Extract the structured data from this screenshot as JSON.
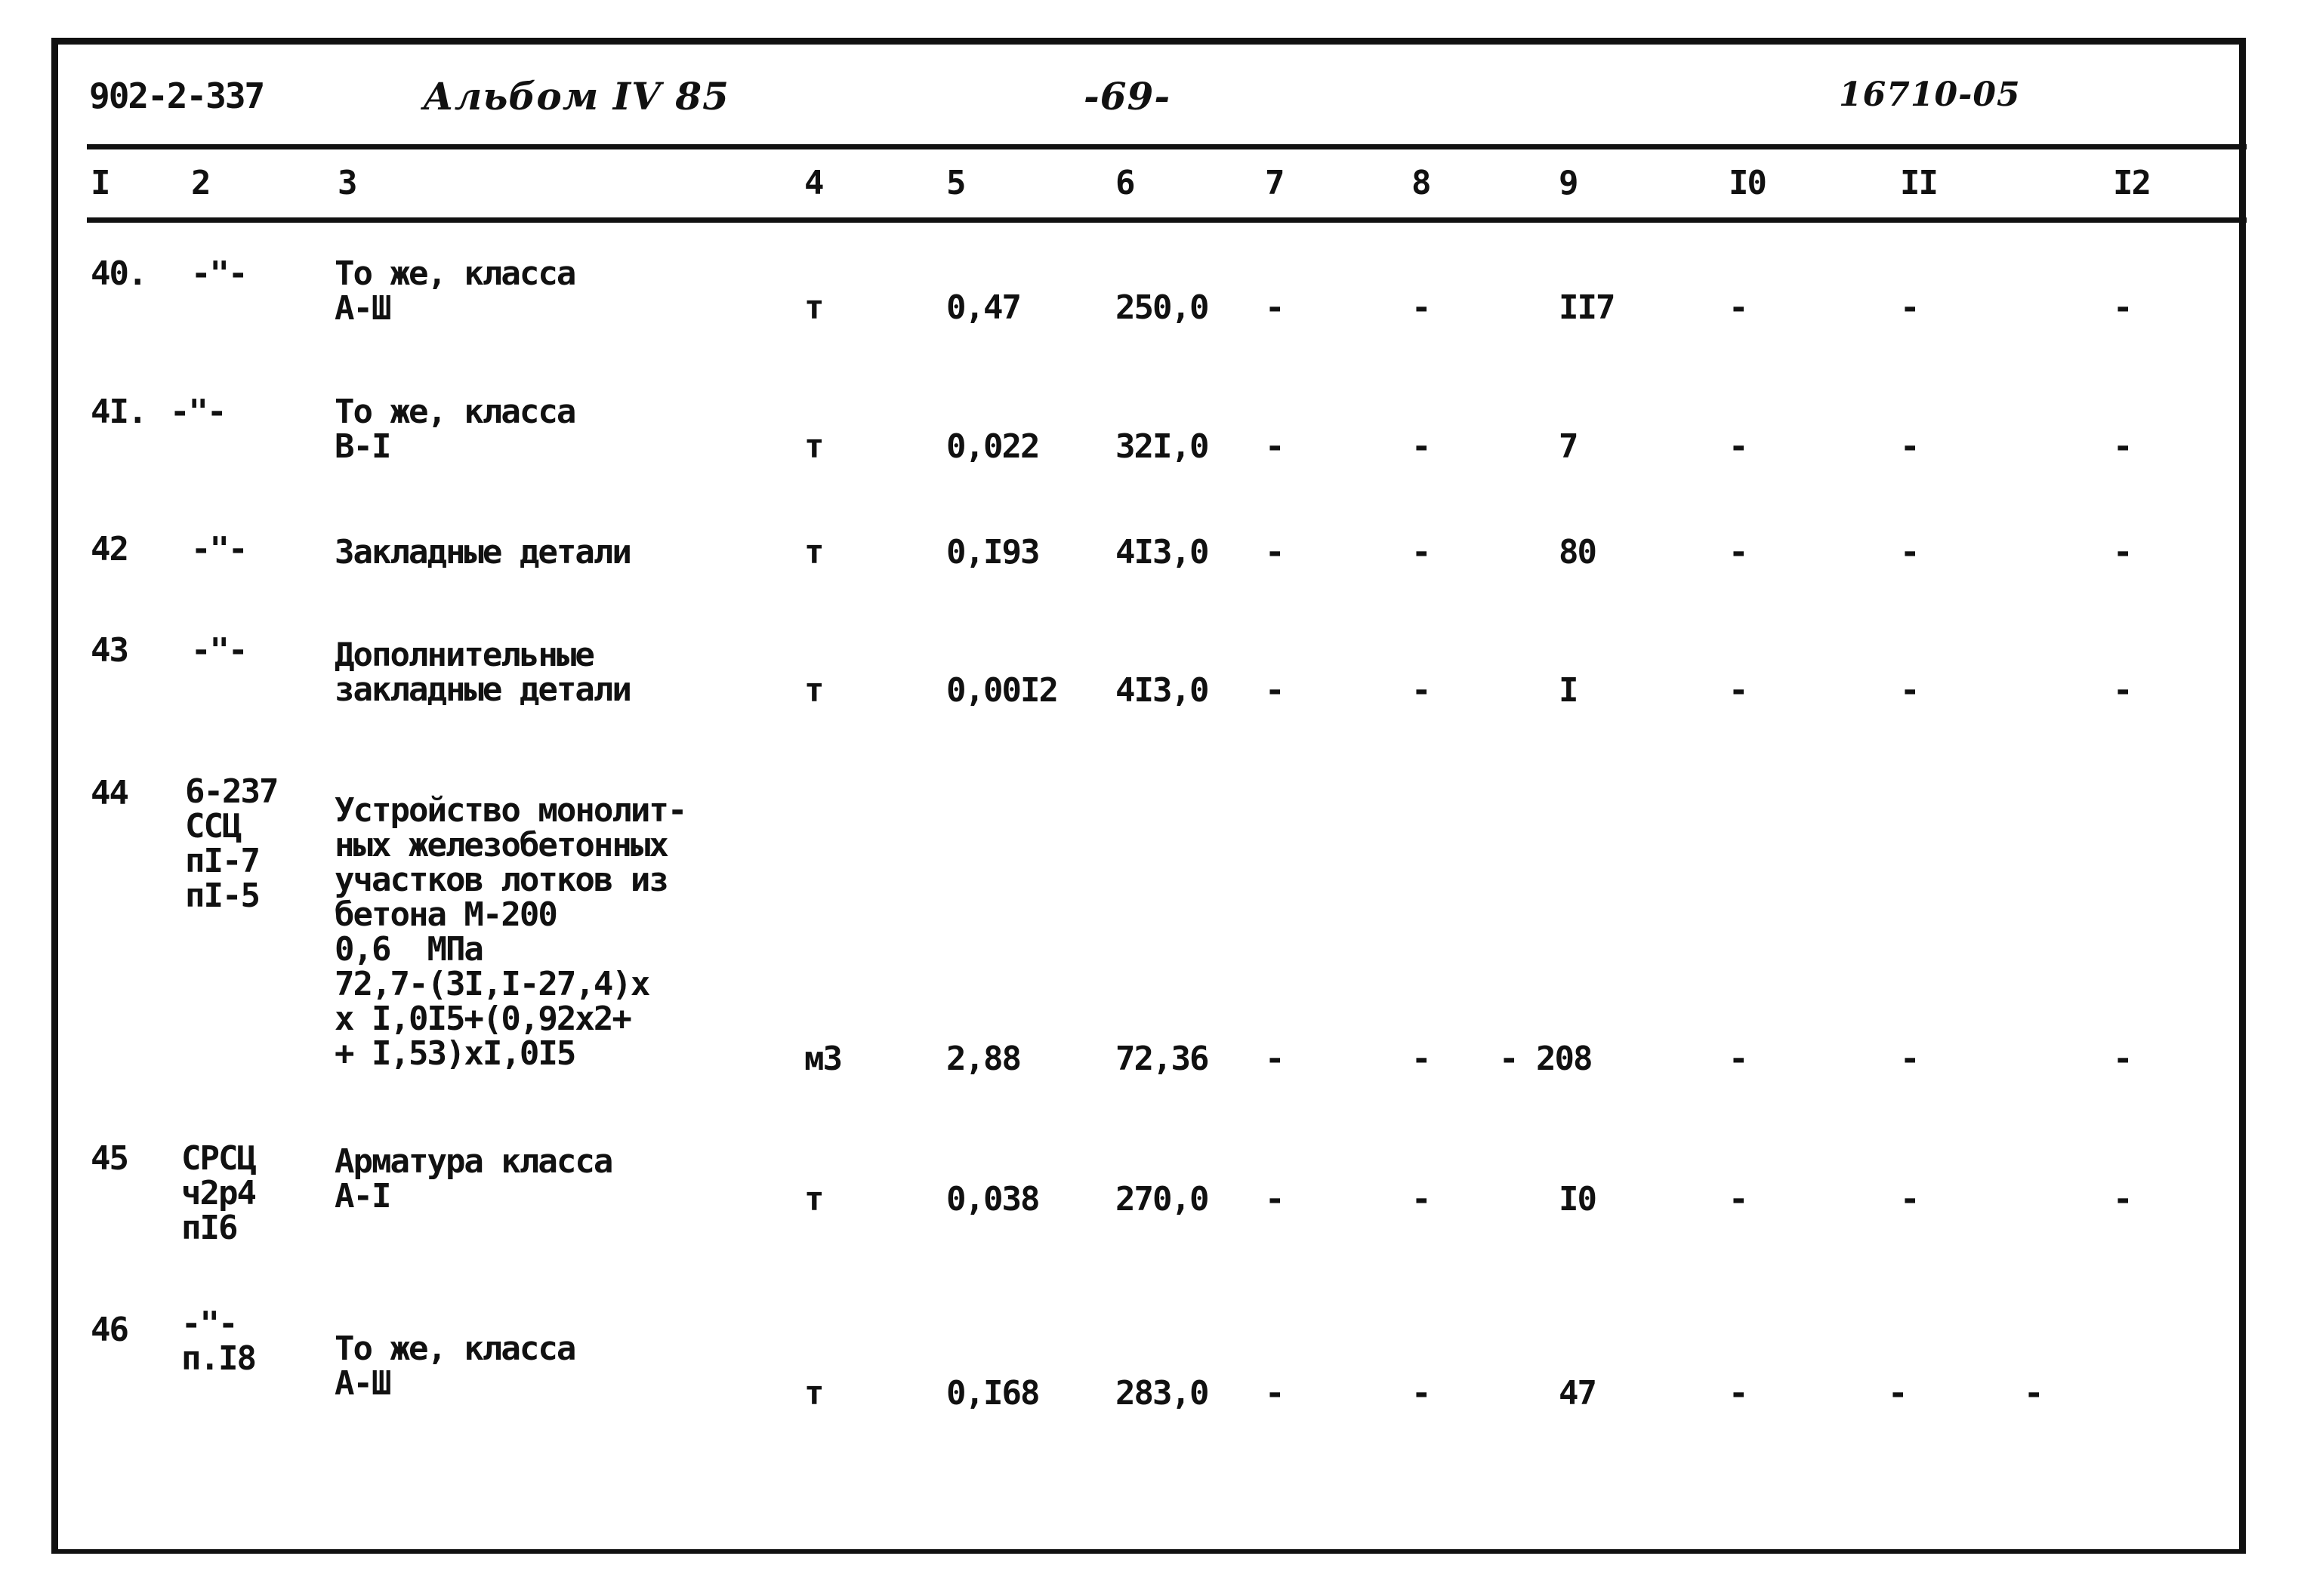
{
  "header": {
    "doc_number": "902-2-337",
    "album": "Альбом IV 85",
    "page": "-69-",
    "code": "16710-05"
  },
  "columns": [
    "I",
    "2",
    "3",
    "4",
    "5",
    "6",
    "7",
    "8",
    "9",
    "I0",
    "II",
    "I2"
  ],
  "rows": [
    {
      "no": "40.",
      "ref": "-\"-",
      "desc": "То же, класса\nА-Ш",
      "unit": "т",
      "qty": "0,47",
      "price": "250,0",
      "c7": "-",
      "c8": "-",
      "c9": "II7",
      "c10": "-",
      "c11": "-",
      "c12": "-"
    },
    {
      "no": "4I.",
      "ref": "-\"-",
      "desc": "То же, класса\nВ-I",
      "unit": "т",
      "qty": "0,022",
      "price": "32I,0",
      "c7": "-",
      "c8": "-",
      "c9": "7",
      "c10": "-",
      "c11": "-",
      "c12": "-"
    },
    {
      "no": "42",
      "ref": "-\"-",
      "desc": "Закладные детали",
      "unit": "т",
      "qty": "0,I93",
      "price": "4I3,0",
      "c7": "-",
      "c8": "-",
      "c9": "80",
      "c10": "-",
      "c11": "-",
      "c12": "-"
    },
    {
      "no": "43",
      "ref": "-\"-",
      "desc": "Дополнительные\nзакладные детали",
      "unit": "т",
      "qty": "0,00I2",
      "price": "4I3,0",
      "c7": "-",
      "c8": "-",
      "c9": "I",
      "c10": "-",
      "c11": "-",
      "c12": "-"
    },
    {
      "no": "44",
      "ref": "6-237\nССЦ\nпI-7\nпI-5",
      "desc": "Устройство монолит-\nных железобетонных\nучастков лотков из\nбетона М-200\n0,6  МПа\n72,7-(3I,I-27,4)х\nх I,0I5+(0,92х2+\n+ I,53)хI,0I5",
      "unit": "м3",
      "qty": "2,88",
      "price": "72,36",
      "c7": "-",
      "c8": "-",
      "c9": "- 208",
      "c10": "-",
      "c11": "-",
      "c12": "-"
    },
    {
      "no": "45",
      "ref": "СРСЦ\nч2р4\nпI6",
      "desc": "Арматура класса\nА-I",
      "unit": "т",
      "qty": "0,038",
      "price": "270,0",
      "c7": "-",
      "c8": "-",
      "c9": "I0",
      "c10": "-",
      "c11": "-",
      "c12": "-"
    },
    {
      "no": "46",
      "ref": "-\"-\nп.I8",
      "desc": "То же, класса\nА-Ш",
      "unit": "т",
      "qty": "0,I68",
      "price": "283,0",
      "c7": "-",
      "c8": "-",
      "c9": "47",
      "c10": "-",
      "c11": "-",
      "c12": "-"
    }
  ]
}
